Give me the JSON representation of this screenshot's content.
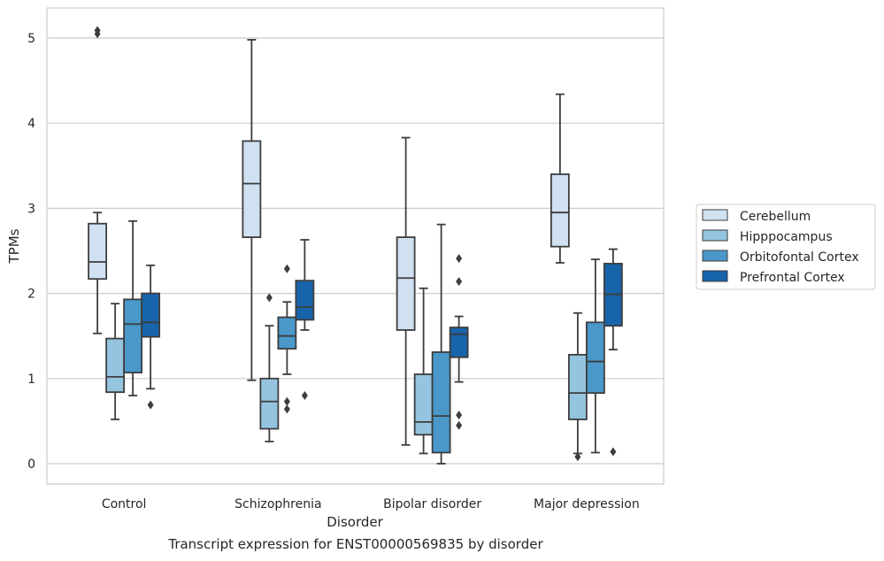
{
  "caption": "Transcript expression for ENST00000569835 by disorder",
  "chart_data": {
    "type": "boxplot",
    "xlabel": "Disorder",
    "ylabel": "TPMs",
    "ylim": [
      -0.25,
      5.35
    ],
    "yticks": [
      0,
      1,
      2,
      3,
      4,
      5
    ],
    "categories": [
      "Control",
      "Schizophrenia",
      "Bipolar disorder",
      "Major depression"
    ],
    "grid": "horizontal",
    "legend_position": "right-center",
    "series": [
      {
        "name": "Cerebellum",
        "color": "#d0e1f2",
        "boxes": [
          {
            "whisker_low": 1.53,
            "q1": 2.17,
            "median": 2.37,
            "q3": 2.82,
            "whisker_high": 2.95,
            "outliers": [
              5.05,
              5.09
            ]
          },
          {
            "whisker_low": 0.98,
            "q1": 2.66,
            "median": 3.29,
            "q3": 3.79,
            "whisker_high": 4.98,
            "outliers": []
          },
          {
            "whisker_low": 0.22,
            "q1": 1.57,
            "median": 2.18,
            "q3": 2.66,
            "whisker_high": 3.83,
            "outliers": []
          },
          {
            "whisker_low": 2.36,
            "q1": 2.55,
            "median": 2.95,
            "q3": 3.4,
            "whisker_high": 4.34,
            "outliers": []
          }
        ]
      },
      {
        "name": "Hipppocampus",
        "color": "#94c4df",
        "boxes": [
          {
            "whisker_low": 0.52,
            "q1": 0.84,
            "median": 1.02,
            "q3": 1.47,
            "whisker_high": 1.88,
            "outliers": []
          },
          {
            "whisker_low": 0.26,
            "q1": 0.41,
            "median": 0.73,
            "q3": 1.0,
            "whisker_high": 1.62,
            "outliers": [
              1.95
            ]
          },
          {
            "whisker_low": 0.12,
            "q1": 0.34,
            "median": 0.49,
            "q3": 1.05,
            "whisker_high": 2.06,
            "outliers": []
          },
          {
            "whisker_low": 0.12,
            "q1": 0.52,
            "median": 0.83,
            "q3": 1.28,
            "whisker_high": 1.77,
            "outliers": [
              0.08
            ]
          }
        ]
      },
      {
        "name": "Orbitofontal Cortex",
        "color": "#4a98c9",
        "boxes": [
          {
            "whisker_low": 0.8,
            "q1": 1.07,
            "median": 1.64,
            "q3": 1.93,
            "whisker_high": 2.85,
            "outliers": []
          },
          {
            "whisker_low": 1.05,
            "q1": 1.35,
            "median": 1.5,
            "q3": 1.72,
            "whisker_high": 1.9,
            "outliers": [
              2.29,
              0.73,
              0.64
            ]
          },
          {
            "whisker_low": 0.0,
            "q1": 0.13,
            "median": 0.56,
            "q3": 1.31,
            "whisker_high": 2.81,
            "outliers": []
          },
          {
            "whisker_low": 0.13,
            "q1": 0.83,
            "median": 1.2,
            "q3": 1.66,
            "whisker_high": 2.4,
            "outliers": []
          }
        ]
      },
      {
        "name": "Prefrontal Cortex",
        "color": "#1764ab",
        "boxes": [
          {
            "whisker_low": 0.88,
            "q1": 1.49,
            "median": 1.66,
            "q3": 2.0,
            "whisker_high": 2.33,
            "outliers": [
              0.69
            ]
          },
          {
            "whisker_low": 1.57,
            "q1": 1.69,
            "median": 1.84,
            "q3": 2.15,
            "whisker_high": 2.63,
            "outliers": [
              0.8
            ]
          },
          {
            "whisker_low": 0.96,
            "q1": 1.25,
            "median": 1.52,
            "q3": 1.6,
            "whisker_high": 1.73,
            "outliers": [
              2.41,
              2.14,
              0.57,
              0.45
            ]
          },
          {
            "whisker_low": 1.34,
            "q1": 1.62,
            "median": 1.99,
            "q3": 2.35,
            "whisker_high": 2.52,
            "outliers": [
              0.14
            ]
          }
        ]
      }
    ]
  }
}
